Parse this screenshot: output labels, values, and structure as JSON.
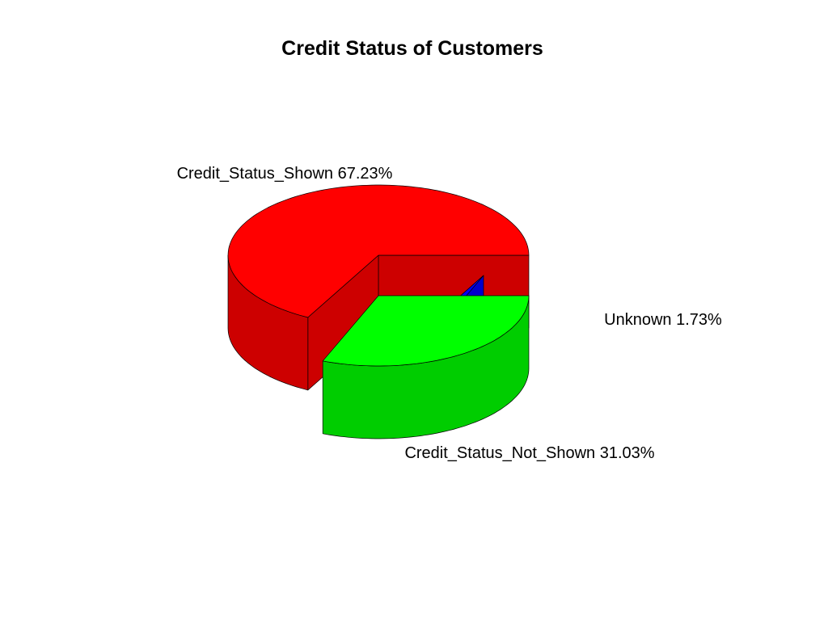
{
  "chart_data": {
    "type": "pie",
    "style": "3d-exploded",
    "title": "Credit Status of Customers",
    "slices": [
      {
        "name": "Credit_Status_Shown",
        "value": 67.23,
        "label": "Credit_Status_Shown 67.23%",
        "color": "#ff0000",
        "side_color": "#cd0000"
      },
      {
        "name": "Unknown",
        "value": 1.73,
        "label": "Unknown 1.73%",
        "color": "#0000ff",
        "side_color": "#0000cd"
      },
      {
        "name": "Credit_Status_Not_Shown",
        "value": 31.03,
        "label": "Credit_Status_Not_Shown 31.03%",
        "color": "#00ff00",
        "side_color": "#00cd00"
      }
    ]
  }
}
